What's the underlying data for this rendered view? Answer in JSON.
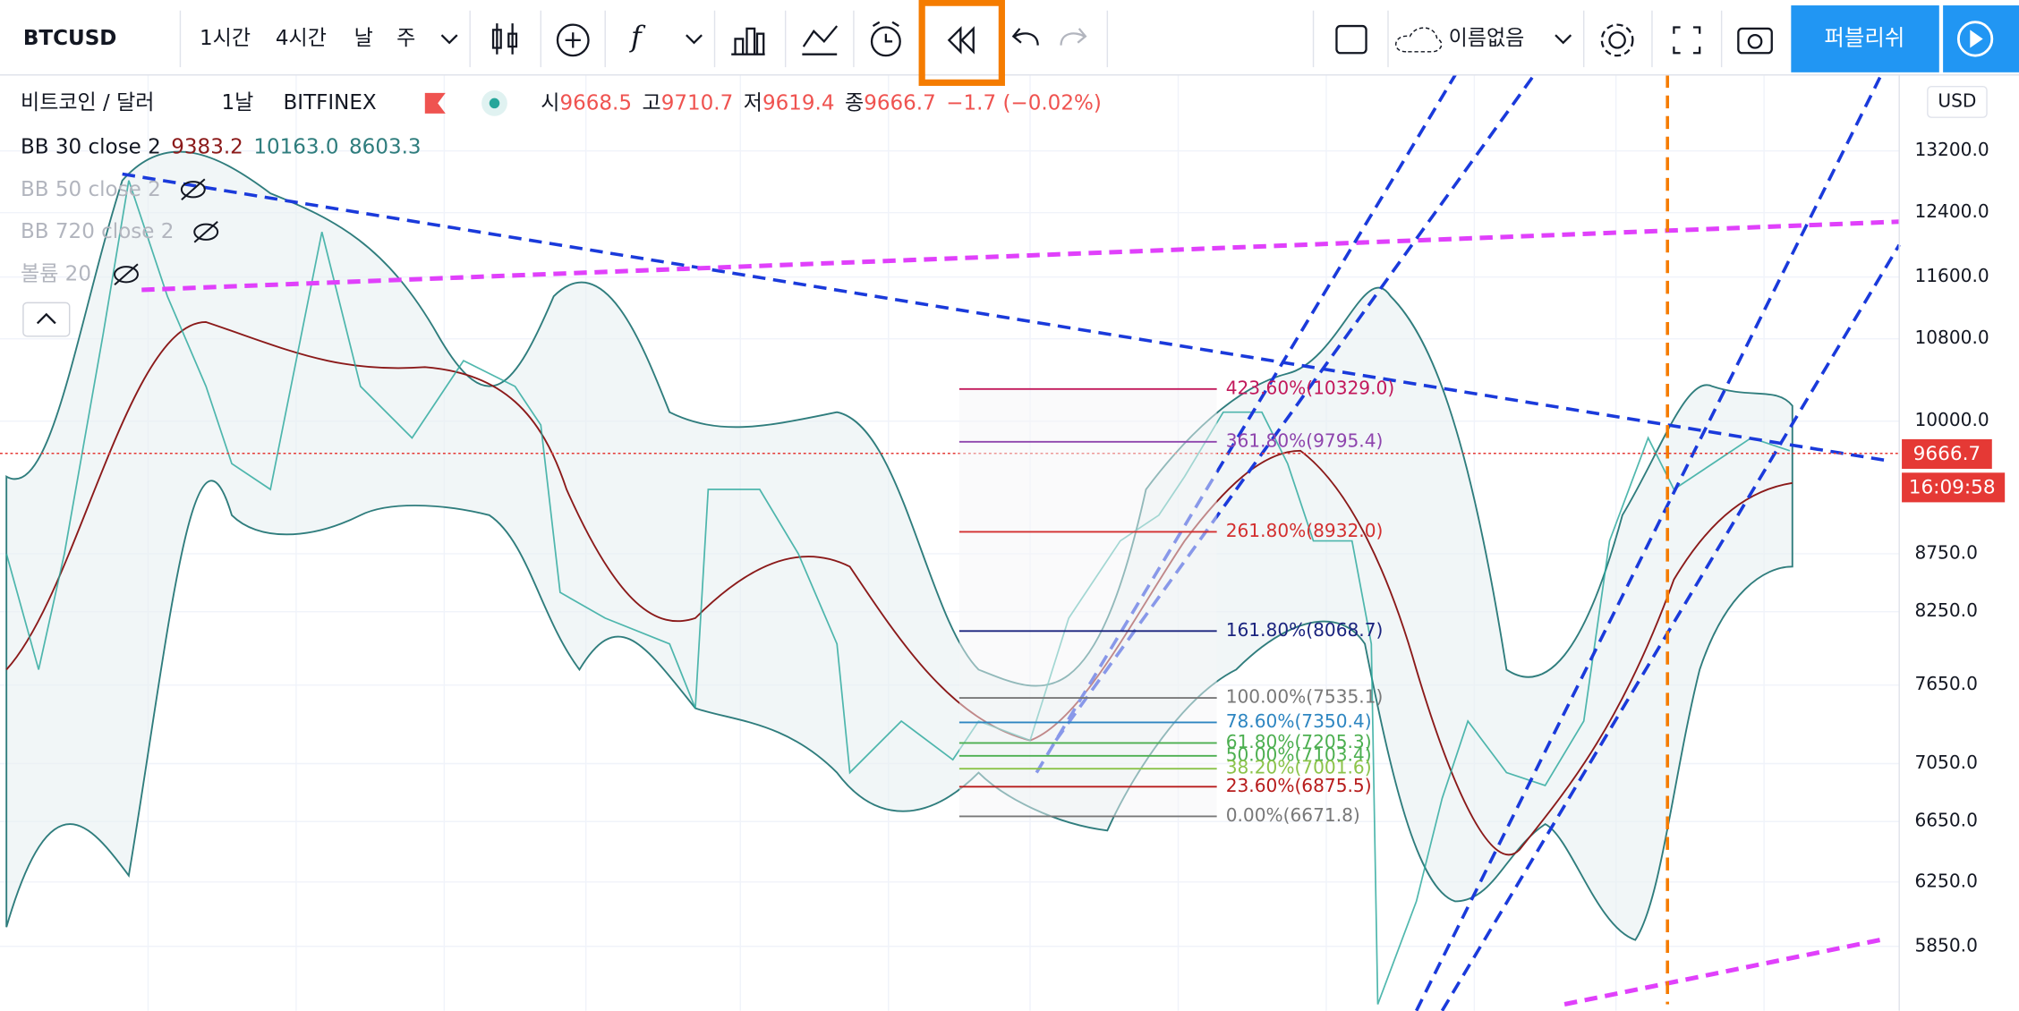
{
  "toolbar": {
    "symbol": "BTCUSD",
    "intervals": [
      "1시간",
      "4시간",
      "날",
      "주"
    ],
    "layout_name": "이름없음",
    "publish": "퍼블리쉬"
  },
  "legend": {
    "title": "비트코인 / 달러",
    "interval": "1날",
    "exchange": "BITFINEX",
    "ohlc": [
      {
        "label": "시",
        "value": "9668.5"
      },
      {
        "label": "고",
        "value": "9710.7"
      },
      {
        "label": "저",
        "value": "9619.4"
      },
      {
        "label": "종",
        "value": "9666.7"
      }
    ],
    "change": "−1.7 (−0.02%)",
    "indicators": [
      {
        "name": "BB 30 close 2",
        "values": [
          "9383.2",
          "10163.0",
          "8603.3"
        ]
      },
      {
        "name": "BB 50 close 2",
        "values": []
      },
      {
        "name": "BB 720 close 2",
        "values": []
      },
      {
        "name": "볼륨 20",
        "values": []
      }
    ]
  },
  "price_axis": {
    "currency": "USD",
    "labels": [
      "13200.0",
      "12400.0",
      "11600.0",
      "10800.0",
      "10000.0",
      "8750.0",
      "8250.0",
      "7650.0",
      "7050.0",
      "6650.0",
      "6250.0",
      "5850.0"
    ],
    "last_price": "9666.7",
    "countdown": "16:09:58"
  },
  "fib_levels": [
    {
      "label": "423.60%(10329.0)",
      "color": "#c2185b"
    },
    {
      "label": "361.80%(9795.4)",
      "color": "#8e44ad"
    },
    {
      "label": "261.80%(8932.0)",
      "color": "#d32f2f"
    },
    {
      "label": "161.80%(8068.7)",
      "color": "#1a237e"
    },
    {
      "label": "100.00%(7535.1)",
      "color": "#787878"
    },
    {
      "label": "78.60%(7350.4)",
      "color": "#2e86c1"
    },
    {
      "label": "61.80%(7205.3)",
      "color": "#4caf50"
    },
    {
      "label": "50.00%(7103.4)",
      "color": "#4caf50"
    },
    {
      "label": "38.20%(7001.6)",
      "color": "#8bc34a"
    },
    {
      "label": "23.60%(6875.5)",
      "color": "#b71c1c"
    },
    {
      "label": "0.00%(6671.8)",
      "color": "#787878"
    }
  ]
}
